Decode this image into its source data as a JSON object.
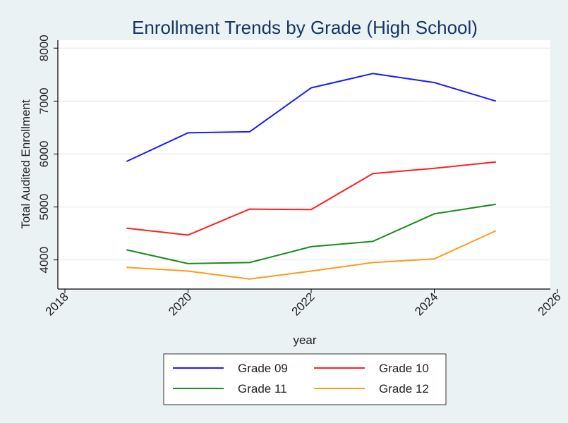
{
  "chart_data": {
    "type": "line",
    "title": "Enrollment Trends by Grade (High School)",
    "xlabel": "year",
    "ylabel": "Total Audited Enrollment",
    "xlim": [
      2018,
      2026
    ],
    "ylim": [
      3450,
      8150
    ],
    "x_ticks": [
      2018,
      2020,
      2022,
      2024,
      2026
    ],
    "y_ticks": [
      4000,
      5000,
      6000,
      7000,
      8000
    ],
    "x": [
      2019,
      2020,
      2021,
      2022,
      2023,
      2024,
      2025
    ],
    "grid": "horizontal",
    "legend_position": "bottom",
    "series": [
      {
        "name": "Grade 09",
        "color": "#1a1aff",
        "values": [
          5860,
          6400,
          6420,
          7250,
          7520,
          7350,
          7000
        ]
      },
      {
        "name": "Grade 10",
        "color": "#ff2020",
        "values": [
          4600,
          4470,
          4960,
          4950,
          5630,
          5730,
          5850
        ]
      },
      {
        "name": "Grade 11",
        "color": "#1a8a1a",
        "values": [
          4190,
          3930,
          3950,
          4250,
          4350,
          4870,
          5050
        ]
      },
      {
        "name": "Grade 12",
        "color": "#ff9a1a",
        "values": [
          3860,
          3790,
          3640,
          3790,
          3950,
          4020,
          4550
        ]
      }
    ]
  }
}
